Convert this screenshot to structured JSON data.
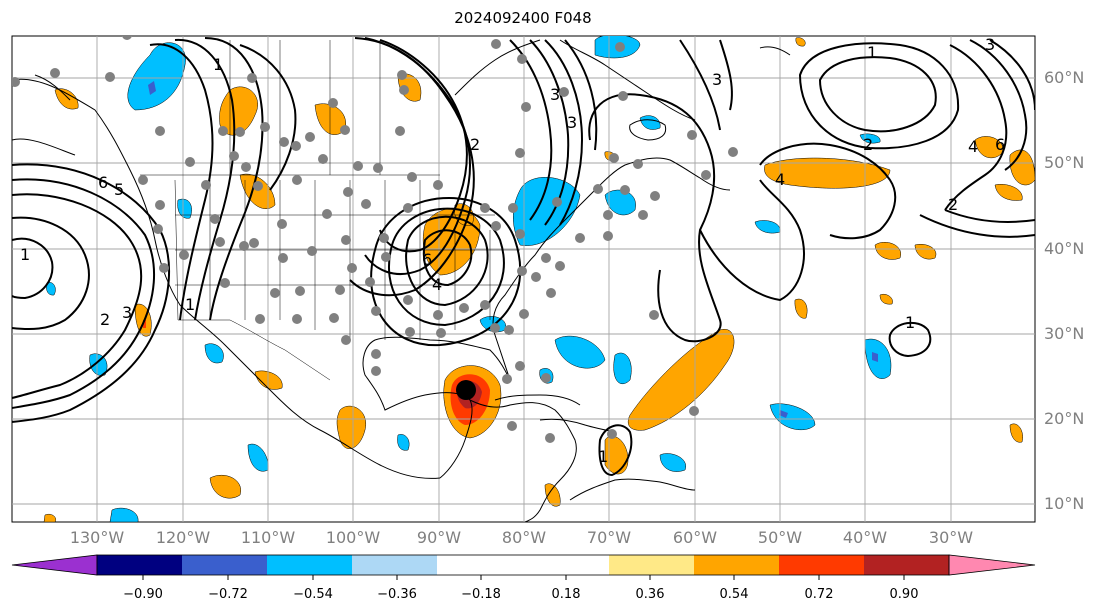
{
  "title": "2024092400 F048",
  "map": {
    "projection": "cylindrical",
    "lon_range": [
      "140°W",
      "25°W"
    ],
    "lat_range": [
      "7.5°N",
      "65°N"
    ],
    "gridlines": true,
    "background": "#ffffff",
    "coastline_color": "#000000",
    "contour_color": "#000000",
    "station_marker_color": "#808080",
    "storm_center_marker": "black-dot",
    "storm_center_location": "Gulf of Mexico / Yucatan",
    "contour_labels_visible": [
      "1",
      "2",
      "3",
      "4",
      "5",
      "6"
    ]
  },
  "lat_labels": [
    "60°N",
    "50°N",
    "40°N",
    "30°N",
    "20°N",
    "10°N"
  ],
  "lon_labels": [
    "130°W",
    "120°W",
    "110°W",
    "100°W",
    "90°W",
    "80°W",
    "70°W",
    "60°W",
    "50°W",
    "40°W",
    "30°W"
  ],
  "colorbar": {
    "colors": [
      "#9b30d0",
      "#000080",
      "#3a5fcd",
      "#00bfff",
      "#add8f5",
      "#ffffff",
      "#ffe987",
      "#ffa500",
      "#ff3a00",
      "#b22222",
      "#ff88b0"
    ],
    "ticks": [
      "−0.90",
      "−0.72",
      "−0.54",
      "−0.36",
      "−0.18",
      "0.18",
      "0.36",
      "0.54",
      "0.72",
      "0.90"
    ],
    "extend": "both"
  }
}
